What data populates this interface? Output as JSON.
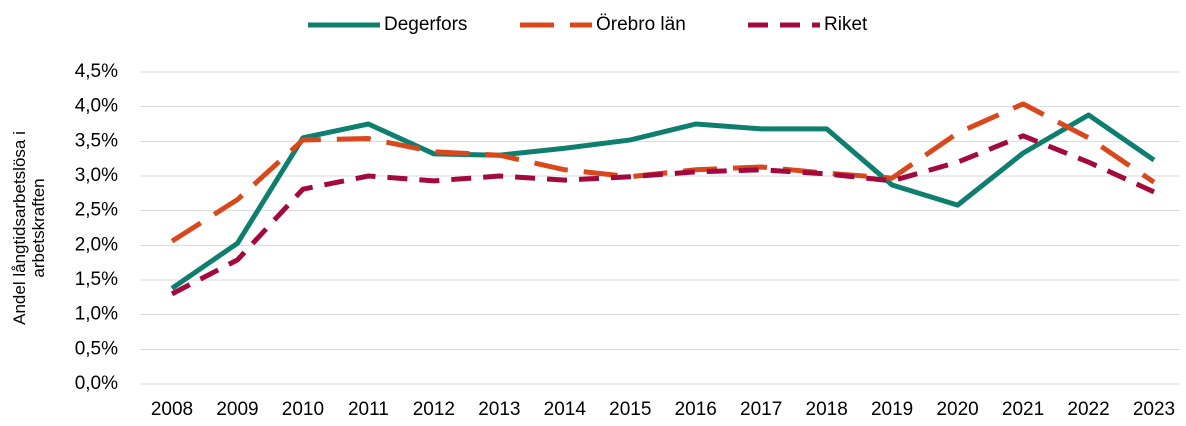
{
  "chart_data": {
    "type": "line",
    "y_label": [
      "Andel långtidsarbetslösa i",
      "arbetskraften"
    ],
    "categories": [
      "2008",
      "2009",
      "2010",
      "2011",
      "2012",
      "2013",
      "2014",
      "2015",
      "2016",
      "2017",
      "2018",
      "2019",
      "2020",
      "2021",
      "2022",
      "2023"
    ],
    "series": [
      {
        "name": "Degerfors",
        "color": "#0e7f6e",
        "dash": "solid",
        "values": [
          1.38,
          2.03,
          3.55,
          3.75,
          3.32,
          3.3,
          3.4,
          3.52,
          3.75,
          3.68,
          3.68,
          2.87,
          2.58,
          3.33,
          3.88,
          3.23
        ]
      },
      {
        "name": "Örebro län",
        "color": "#d9481c",
        "dash": "long",
        "values": [
          2.06,
          2.66,
          3.52,
          3.54,
          3.35,
          3.3,
          3.09,
          2.99,
          3.09,
          3.13,
          3.04,
          2.97,
          3.62,
          4.04,
          3.55,
          2.91
        ]
      },
      {
        "name": "Riket",
        "color": "#a3093f",
        "dash": "medium",
        "values": [
          1.3,
          1.79,
          2.81,
          3.0,
          2.93,
          3.0,
          2.94,
          2.99,
          3.06,
          3.09,
          3.03,
          2.93,
          3.2,
          3.58,
          3.2,
          2.77
        ]
      }
    ],
    "ylim": [
      0,
      4.5
    ],
    "yticks": [
      {
        "value": 0,
        "label": "0,0%"
      },
      {
        "value": 0.5,
        "label": "0,5%"
      },
      {
        "value": 1,
        "label": "1,0%"
      },
      {
        "value": 1.5,
        "label": "1,5%"
      },
      {
        "value": 2,
        "label": "2,0%"
      },
      {
        "value": 2.5,
        "label": "2,5%"
      },
      {
        "value": 3,
        "label": "3,0%"
      },
      {
        "value": 3.5,
        "label": "3,5%"
      },
      {
        "value": 4,
        "label": "4,0%"
      },
      {
        "value": 4.5,
        "label": "4,5%"
      }
    ],
    "grid": true,
    "legend": "top"
  }
}
